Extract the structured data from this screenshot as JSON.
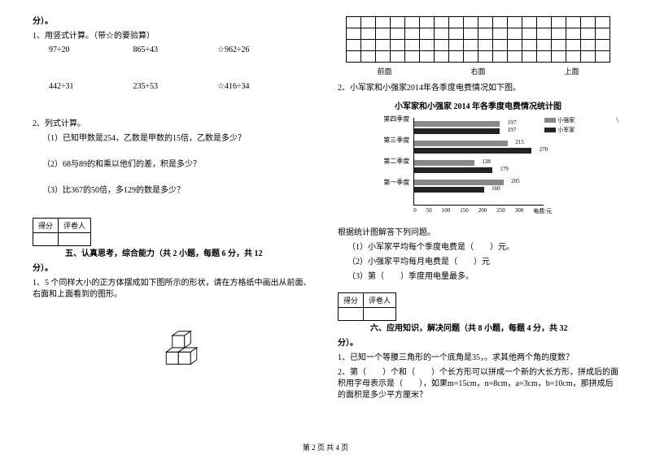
{
  "leftCol": {
    "header": "分）。",
    "q1_title": "1、用竖式计算。（带☆的要验算）",
    "row1": {
      "a": "97÷20",
      "b": "865÷43",
      "c": "☆962÷26"
    },
    "row2": {
      "a": "442÷31",
      "b": "235÷53",
      "c": "☆416÷34"
    },
    "q2_title": "2、列式计算。",
    "q2_1": "（1）已知甲数是254，乙数是甲数的15倍，乙数是多少？",
    "q2_2": "（2）68与89的和乘以他们的差，积是多少？",
    "q2_3": "（3）比367的50倍，多129的数是多少？",
    "score_a": "得分",
    "score_b": "评卷人",
    "section5": "五、认真思考，综合能力（共 2 小题，每题 6 分，共 12",
    "section5_tail": "分）。",
    "s5_q1": "1、5 个同样大小的正方体摆成如下图所示的形状，请在方格纸中画出从前面、右面和上面看到的图形。"
  },
  "rightCol": {
    "grid_labels": {
      "a": "前面",
      "b": "右面",
      "c": "上面"
    },
    "q2_title": "2、小军家和小强家2014年各季度电费情况如下图。",
    "chart_title": "小军家和小强家 2014 年各季度电费情况统计图",
    "legend_a": "小强家",
    "legend_b": "小军家",
    "quarters": {
      "q1": "第一季度",
      "q2": "第二季度",
      "q3": "第三季度",
      "q4": "第四季度"
    },
    "chart_vals": {
      "q4a": "197",
      "q4b": "197",
      "q3a": "215",
      "q3b": "270",
      "q2a": "138",
      "q2b": "179",
      "q1a": "205",
      "q1b": "160"
    },
    "xaxis": {
      "t0": "0",
      "t1": "50",
      "t2": "100",
      "t3": "150",
      "t4": "200",
      "t5": "250",
      "t6": "300",
      "label": "电费/元"
    },
    "chart_max": 300,
    "chart_colors": {
      "a": "#888888",
      "b": "#222222",
      "grid": "#cccccc",
      "axis": "#000000"
    },
    "qtext": "根据统计图解答下列问题。",
    "q2_1": "（1）小军家平均每个季度电费是（　　）元。",
    "q2_2": "（2）小强家平均每月电费是（　　）元",
    "q2_3": "（3）第（　　）季度用电量最多。",
    "score_a": "得分",
    "score_b": "评卷人",
    "section6": "六、应用知识，解决问题（共 8 小题，每题 4 分，共 32",
    "section6_tail": "分）。",
    "s6_q1": "1、已知一个等腰三角形的一个底角是35，。求其他两个角的度数？",
    "s6_q2": "2、第（　　）个和（　　）个长方形可以拼成一个新的大长方形，拼成后的面积用字母表示是（　　），如果m=15cm，n=8cm，a=3cm，b=10cm，那拼成后的面积是多少平方厘米？"
  },
  "footer": "第 2 页 共 4 页"
}
